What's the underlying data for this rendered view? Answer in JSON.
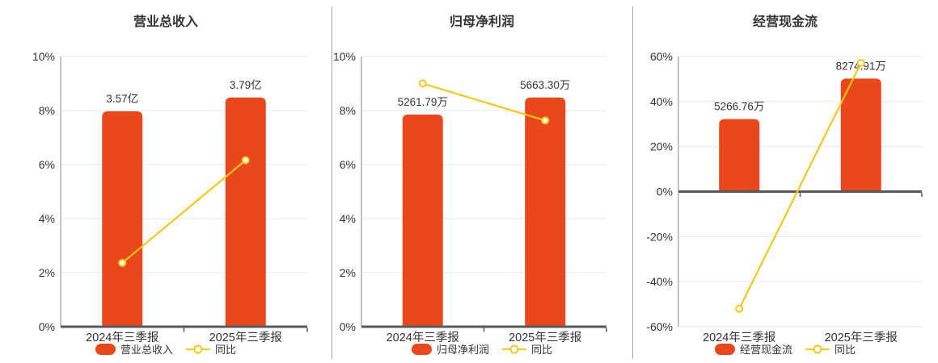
{
  "colors": {
    "bar": "#E8481C",
    "line": "#FAC514",
    "marker_fill": "#FFFFFF",
    "grid": "#E2E8F2",
    "zero_axis": "#58595B",
    "y_axis_line": "#A9AEB8",
    "text": "#333333",
    "divider": "#A5A5A5"
  },
  "chart_data": [
    {
      "type": "bar+line",
      "title": "营业总收入",
      "categories": [
        "2024年三季报",
        "2025年三季报"
      ],
      "bar_series": {
        "name": "营业总收入",
        "amounts": [
          3.57,
          3.79
        ],
        "unit": "亿",
        "display_labels": [
          "3.57亿",
          "3.79亿"
        ],
        "axis_position_pct": [
          7.97,
          8.48
        ]
      },
      "line_series": {
        "name": "同比",
        "values_pct": [
          2.36,
          6.16
        ]
      },
      "y_axis": {
        "min": 0,
        "max": 10,
        "tick_step": 2,
        "tick_suffix": "%",
        "tick_labels_bottom_to_top": [
          "0%",
          "2%",
          "4%",
          "6%",
          "8%",
          "10%"
        ]
      },
      "legend_position": "bottom",
      "grid": true
    },
    {
      "type": "bar+line",
      "title": "归母净利润",
      "categories": [
        "2024年三季报",
        "2025年三季报"
      ],
      "bar_series": {
        "name": "归母净利润",
        "amounts": [
          5261.79,
          5663.3
        ],
        "unit": "万",
        "display_labels": [
          "5261.79万",
          "5663.30万"
        ],
        "axis_position_pct": [
          7.85,
          8.48
        ]
      },
      "line_series": {
        "name": "同比",
        "values_pct": [
          9.0,
          7.63
        ]
      },
      "y_axis": {
        "min": 0,
        "max": 10,
        "tick_step": 2,
        "tick_suffix": "%",
        "tick_labels_bottom_to_top": [
          "0%",
          "2%",
          "4%",
          "6%",
          "8%",
          "10%"
        ]
      },
      "legend_position": "bottom",
      "grid": true
    },
    {
      "type": "bar+line",
      "title": "经营现金流",
      "categories": [
        "2024年三季报",
        "2025年三季报"
      ],
      "bar_series": {
        "name": "经营现金流",
        "amounts": [
          5266.76,
          8274.91
        ],
        "unit": "万",
        "display_labels": [
          "5266.76万",
          "8274.91万"
        ],
        "axis_position_pct": [
          32.2,
          50.2
        ]
      },
      "line_series": {
        "name": "同比",
        "values_pct": [
          -52.0,
          57.1
        ]
      },
      "y_axis": {
        "min": -60,
        "max": 60,
        "tick_step": 20,
        "tick_suffix": "%",
        "tick_labels_bottom_to_top": [
          "-60%",
          "-40%",
          "-20%",
          "0%",
          "20%",
          "40%",
          "60%"
        ]
      },
      "legend_position": "bottom",
      "grid": true
    }
  ]
}
